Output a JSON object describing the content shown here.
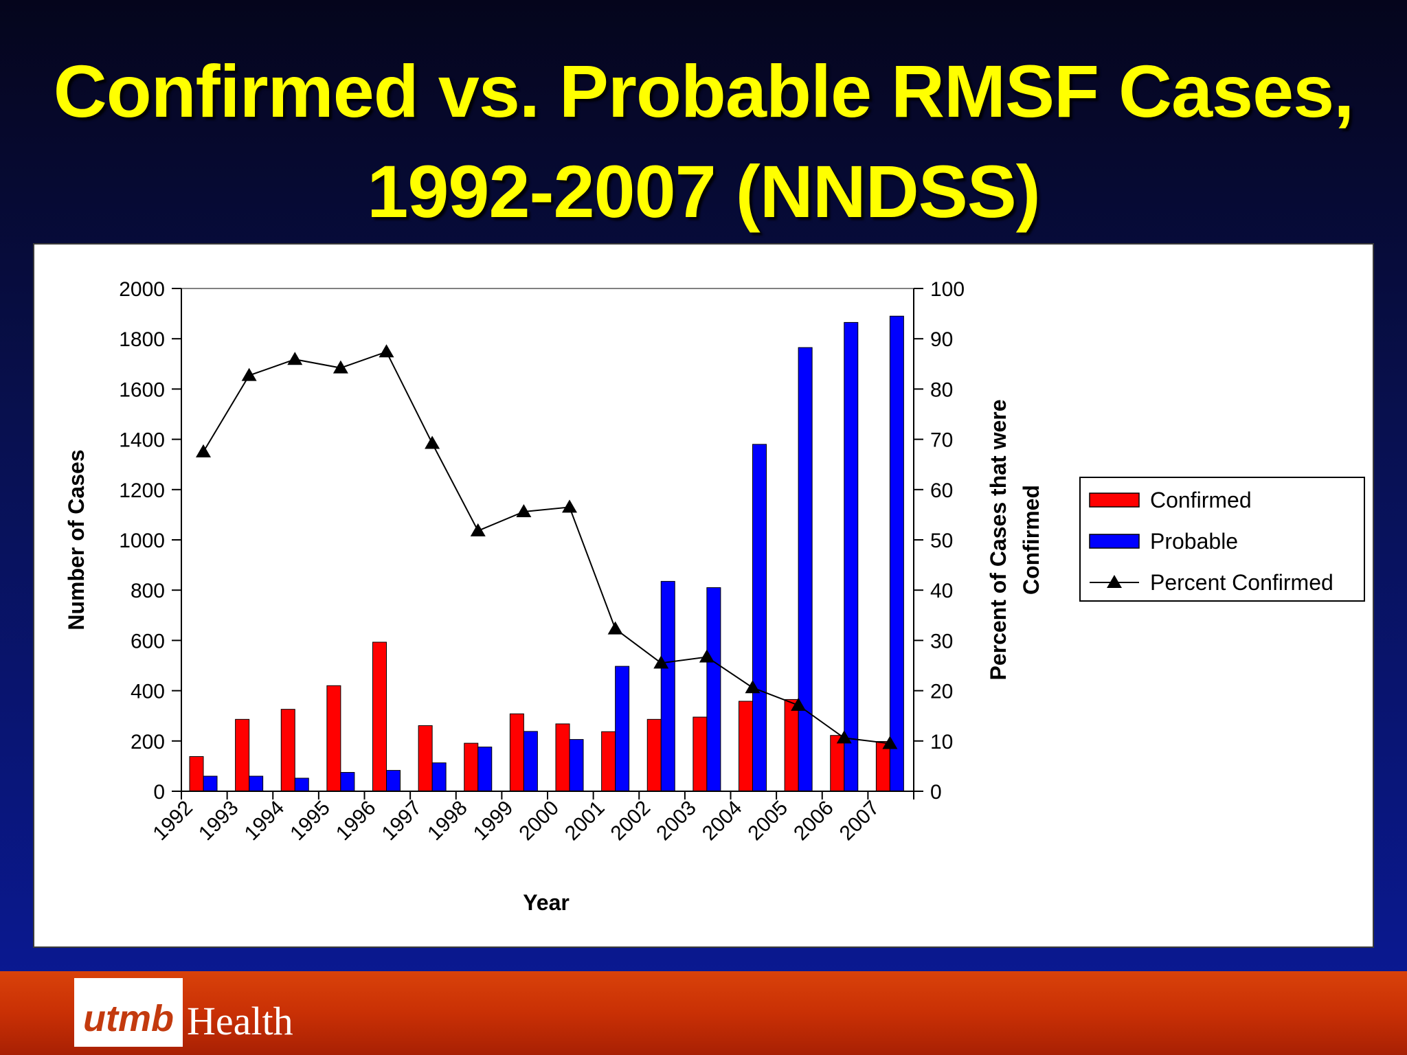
{
  "slide": {
    "title_line1": "Confirmed vs. Probable RMSF Cases,",
    "title_line2": "1992-2007 (NNDSS)"
  },
  "footer": {
    "logo_mark": "utmb",
    "logo_text": "Health"
  },
  "colors": {
    "confirmed": "#ff0000",
    "probable": "#0000ff",
    "line": "#000000",
    "title": "#ffff00"
  },
  "chart_data": {
    "type": "bar",
    "title": "",
    "xlabel": "Year",
    "ylabel": "Number of Cases",
    "y2label_line1": "Percent of Cases that were",
    "y2label_line2": "Confirmed",
    "ylim": [
      0,
      2000
    ],
    "y2lim": [
      0,
      100
    ],
    "yticks": [
      "0",
      "200",
      "400",
      "600",
      "800",
      "1000",
      "1200",
      "1400",
      "1600",
      "1800",
      "2000"
    ],
    "y2ticks": [
      "0",
      "10",
      "20",
      "30",
      "40",
      "50",
      "60",
      "70",
      "80",
      "90",
      "100"
    ],
    "categories": [
      "1992",
      "1993",
      "1994",
      "1995",
      "1996",
      "1997",
      "1998",
      "1999",
      "2000",
      "2001",
      "2002",
      "2003",
      "2004",
      "2005",
      "2006",
      "2007"
    ],
    "legend_position": "right",
    "series": [
      {
        "name": "Confirmed",
        "kind": "bar",
        "axis": "left",
        "values": [
          138,
          286,
          326,
          420,
          593,
          261,
          191,
          308,
          268,
          237,
          286,
          295,
          358,
          365,
          222,
          198
        ]
      },
      {
        "name": "Probable",
        "kind": "bar",
        "axis": "left",
        "values": [
          60,
          60,
          52,
          75,
          83,
          113,
          176,
          238,
          206,
          497,
          835,
          810,
          1380,
          1765,
          1865,
          1890
        ]
      },
      {
        "name": "Percent Confirmed",
        "kind": "line",
        "axis": "right",
        "values": [
          67.5,
          82.7,
          85.9,
          84.2,
          87.4,
          69.2,
          51.8,
          55.6,
          56.5,
          32.3,
          25.5,
          26.7,
          20.6,
          17.1,
          10.6,
          9.5
        ]
      }
    ]
  }
}
